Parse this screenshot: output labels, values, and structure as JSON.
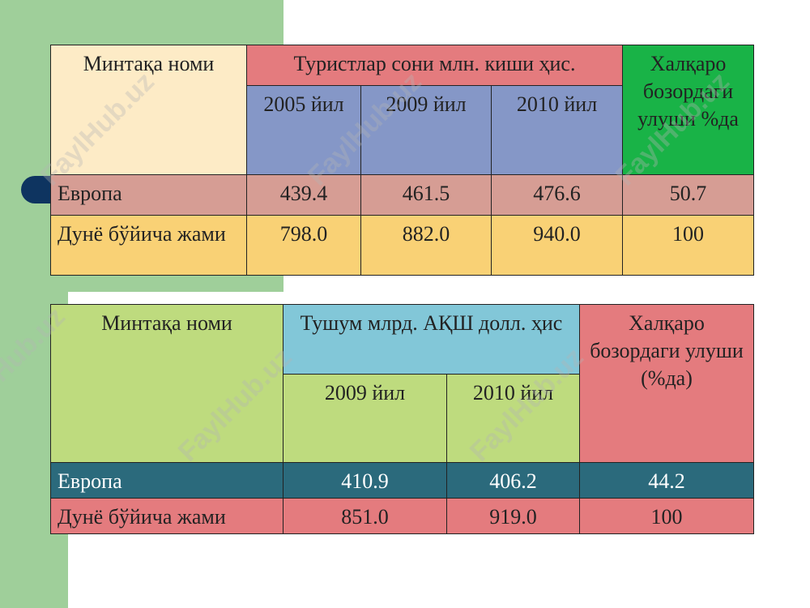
{
  "table1": {
    "region_header": "Минтақа номи",
    "tourists_header": "Туристлар сони млн. киши ҳис.",
    "share_header": "Халқаро бозордаги улуши %да",
    "years": [
      "2005 йил",
      "2009 йил",
      "2010 йил"
    ],
    "rows": [
      {
        "name": "Европа",
        "v2005": "439.4",
        "v2009": "461.5",
        "v2010": "476.6",
        "share": "50.7"
      },
      {
        "name": "Дунё бўйича жами",
        "v2005": "798.0",
        "v2009": "882.0",
        "v2010": "940.0",
        "share": "100"
      }
    ]
  },
  "table2": {
    "region_header": "Минтақа номи",
    "income_header": "Тушум млрд. АҚШ долл. ҳис",
    "share_header": "Халқаро бозордаги улуши (%да)",
    "years": [
      "2009 йил",
      "2010 йил"
    ],
    "rows": [
      {
        "name": "Европа",
        "v2009": "410.9",
        "v2010": "406.2",
        "share": "44.2"
      },
      {
        "name": "Дунё бўйича жами",
        "v2009": "851.0",
        "v2010": "919.0",
        "share": "100"
      }
    ]
  },
  "watermark": "FaylHub.uz",
  "colors": {
    "side_green": "#9fcf9a",
    "pill_navy": "#0e3460",
    "cream": "#fdebc6",
    "rose": "#e47b7e",
    "blue": "#8597c7",
    "green": "#19b347",
    "yellow": "#f9d175",
    "lime": "#bedb7e",
    "cyan": "#82c7d8",
    "teal": "#2b6a7c"
  }
}
